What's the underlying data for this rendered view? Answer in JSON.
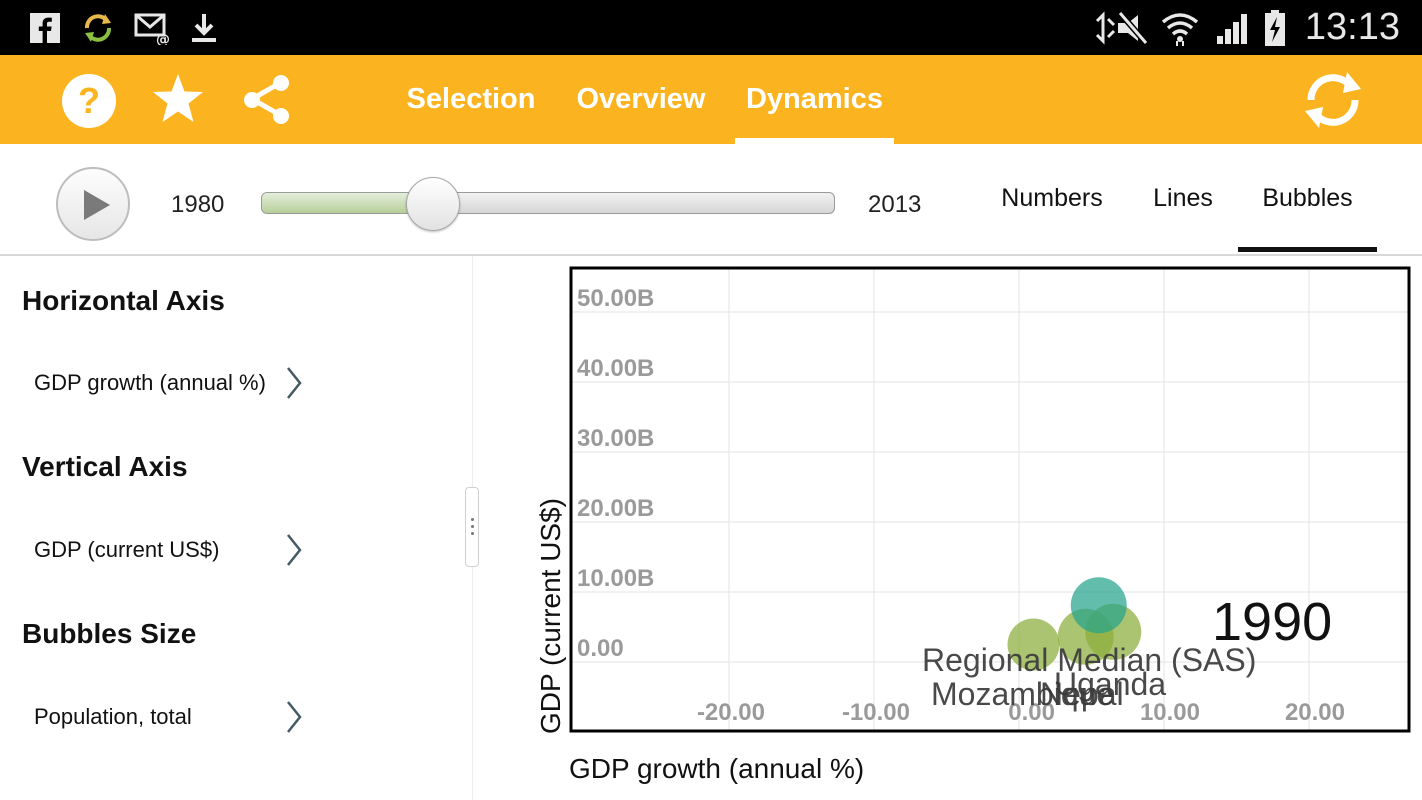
{
  "status_bar": {
    "left_icons": [
      "facebook-icon",
      "sync-icon",
      "mail-icon",
      "download-icon"
    ],
    "right_icons": [
      "mute-icon",
      "wifi-icon",
      "signal-icon",
      "battery-icon"
    ],
    "time": "13:13"
  },
  "action_bar": {
    "color": "#fbb41f",
    "icons": [
      "help-icon",
      "favorite-star-icon",
      "share-icon",
      "refresh-icon"
    ],
    "tabs": [
      {
        "label": "Selection",
        "active": false
      },
      {
        "label": "Overview",
        "active": false
      },
      {
        "label": "Dynamics",
        "active": true
      }
    ]
  },
  "playback": {
    "start_year": "1980",
    "end_year": "2013",
    "slider_fraction": 0.3,
    "modes": [
      {
        "label": "Numbers",
        "active": false
      },
      {
        "label": "Lines",
        "active": false
      },
      {
        "label": "Bubbles",
        "active": true
      }
    ]
  },
  "sidebar": {
    "sections": [
      {
        "title": "Horizontal Axis",
        "value": "GDP growth (annual %)"
      },
      {
        "title": "Vertical Axis",
        "value": "GDP (current US$)"
      },
      {
        "title": "Bubbles Size",
        "value": "Population, total"
      }
    ]
  },
  "chart_data": {
    "type": "scatter",
    "xlabel": "GDP growth (annual %)",
    "ylabel": "GDP (current US$)",
    "x_ticks": [
      "-20.00",
      "-10.00",
      "0.00",
      "10.00",
      "20.00"
    ],
    "y_ticks": [
      "0.00",
      "10.00B",
      "20.00B",
      "30.00B",
      "40.00B",
      "50.00B"
    ],
    "year_label": "1990",
    "grid": true,
    "points": [
      {
        "label": "Mozambique",
        "x": 1.0,
        "y": 2.5,
        "color": "#8aad3a"
      },
      {
        "label": "Nepal",
        "x": 4.6,
        "y": 3.6,
        "color": "#8aad3a"
      },
      {
        "label": "Uganda",
        "x": 6.5,
        "y": 4.3,
        "color": "#8aad3a"
      },
      {
        "label": "Regional Median (SAS)",
        "x": 5.5,
        "y": 8.1,
        "color": "#26a48c"
      }
    ]
  }
}
